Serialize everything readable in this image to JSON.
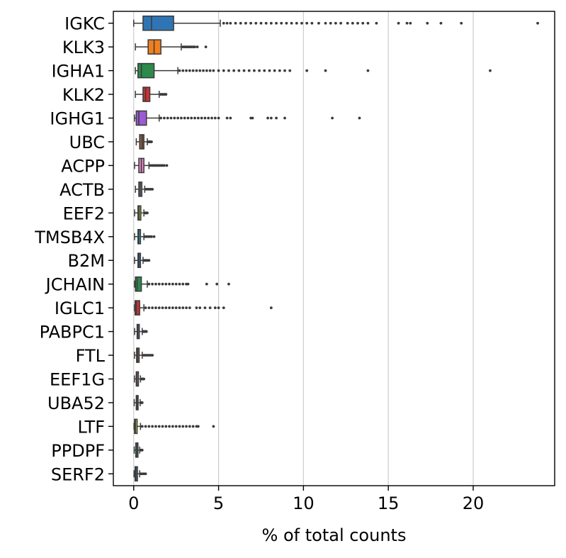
{
  "chart_data": {
    "type": "boxplot",
    "orientation": "horizontal",
    "title": "",
    "xlabel": "% of total counts",
    "ylabel": "",
    "xlim": [
      -1.2,
      24.8
    ],
    "xticks": [
      0,
      5,
      10,
      15,
      20
    ],
    "grid": {
      "x": true,
      "y": false
    },
    "categories": [
      "IGKC",
      "KLK3",
      "IGHA1",
      "KLK2",
      "IGHG1",
      "UBC",
      "ACPP",
      "ACTB",
      "EEF2",
      "TMSB4X",
      "B2M",
      "JCHAIN",
      "IGLC1",
      "PABPC1",
      "FTL",
      "EEF1G",
      "UBA52",
      "LTF",
      "PPDPF",
      "SERF2"
    ],
    "boxes": [
      {
        "name": "IGKC",
        "color": "#2f75b5",
        "whisker_low": 0.0,
        "q1": 0.55,
        "median": 1.05,
        "q3": 2.35,
        "whisker_high": 5.1,
        "fliers": [
          5.3,
          5.5,
          5.7,
          6.0,
          6.3,
          6.6,
          6.9,
          7.2,
          7.5,
          7.8,
          8.1,
          8.4,
          8.7,
          9.0,
          9.3,
          9.6,
          9.9,
          10.2,
          10.5,
          10.9,
          11.3,
          11.6,
          11.9,
          12.2,
          12.6,
          12.9,
          13.2,
          13.5,
          13.8,
          14.3,
          15.6,
          16.1,
          16.3,
          17.3,
          18.1,
          19.3,
          23.8
        ]
      },
      {
        "name": "KLK3",
        "color": "#f07f1f",
        "whisker_low": 0.1,
        "q1": 0.85,
        "median": 1.2,
        "q3": 1.6,
        "whisker_high": 2.8,
        "fliers": [
          2.9,
          3.0,
          3.1,
          3.2,
          3.3,
          3.4,
          3.5,
          3.6,
          3.75,
          4.25
        ]
      },
      {
        "name": "IGHA1",
        "color": "#2c8a4b",
        "whisker_low": 0.1,
        "q1": 0.25,
        "median": 0.45,
        "q3": 1.2,
        "whisker_high": 2.6,
        "fliers": [
          2.7,
          2.9,
          3.1,
          3.3,
          3.5,
          3.7,
          3.9,
          4.1,
          4.3,
          4.5,
          4.7,
          5.0,
          5.3,
          5.6,
          5.9,
          6.2,
          6.5,
          6.8,
          7.1,
          7.4,
          7.7,
          8.0,
          8.3,
          8.6,
          8.9,
          9.2,
          10.2,
          11.3,
          13.8,
          21.0
        ]
      },
      {
        "name": "KLK2",
        "color": "#c93133",
        "whisker_low": 0.1,
        "q1": 0.55,
        "median": 0.7,
        "q3": 0.95,
        "whisker_high": 1.5,
        "fliers": [
          1.6,
          1.7,
          1.8,
          1.9
        ]
      },
      {
        "name": "IGHG1",
        "color": "#9b5bd4",
        "whisker_low": 0.05,
        "q1": 0.15,
        "median": 0.3,
        "q3": 0.75,
        "whisker_high": 1.5,
        "fliers": [
          1.6,
          1.8,
          2.0,
          2.2,
          2.4,
          2.6,
          2.8,
          3.0,
          3.2,
          3.4,
          3.6,
          3.8,
          4.0,
          4.2,
          4.4,
          4.6,
          4.8,
          5.0,
          5.5,
          5.7,
          6.9,
          7.0,
          7.9,
          8.1,
          8.4,
          8.9,
          11.7,
          13.3
        ]
      },
      {
        "name": "UBC",
        "color": "#8b5a44",
        "whisker_low": 0.15,
        "q1": 0.35,
        "median": 0.5,
        "q3": 0.6,
        "whisker_high": 0.8,
        "fliers": [
          0.85,
          0.9,
          0.95,
          1.0,
          1.05
        ]
      },
      {
        "name": "ACPP",
        "color": "#e486c2",
        "whisker_low": 0.05,
        "q1": 0.3,
        "median": 0.45,
        "q3": 0.6,
        "whisker_high": 0.9,
        "fliers": [
          1.0,
          1.1,
          1.2,
          1.3,
          1.4,
          1.5,
          1.6,
          1.7,
          1.8,
          1.95
        ]
      },
      {
        "name": "ACTB",
        "color": "#808080",
        "whisker_low": 0.1,
        "q1": 0.3,
        "median": 0.38,
        "q3": 0.48,
        "whisker_high": 0.65,
        "fliers": [
          0.7,
          0.8,
          0.9,
          1.0,
          1.1
        ]
      },
      {
        "name": "EEF2",
        "color": "#b8bb2f",
        "whisker_low": 0.05,
        "q1": 0.25,
        "median": 0.32,
        "q3": 0.42,
        "whisker_high": 0.6,
        "fliers": [
          0.65,
          0.7,
          0.75,
          0.8
        ]
      },
      {
        "name": "TMSB4X",
        "color": "#1fb7cb",
        "whisker_low": 0.05,
        "q1": 0.25,
        "median": 0.3,
        "q3": 0.4,
        "whisker_high": 0.6,
        "fliers": [
          0.65,
          0.75,
          0.85,
          0.95,
          1.05,
          1.2
        ]
      },
      {
        "name": "B2M",
        "color": "#2f75b5",
        "whisker_low": 0.05,
        "q1": 0.25,
        "median": 0.3,
        "q3": 0.4,
        "whisker_high": 0.55,
        "fliers": [
          0.6,
          0.65,
          0.7,
          0.75,
          0.8,
          0.85,
          0.9
        ]
      },
      {
        "name": "JCHAIN",
        "color": "#2c8a4b",
        "whisker_low": 0.05,
        "q1": 0.1,
        "median": 0.2,
        "q3": 0.45,
        "whisker_high": 0.8,
        "fliers": [
          0.9,
          1.1,
          1.3,
          1.5,
          1.7,
          1.9,
          2.1,
          2.3,
          2.5,
          2.7,
          2.9,
          3.1,
          3.2,
          4.3,
          4.9,
          5.6
        ]
      },
      {
        "name": "IGLC1",
        "color": "#c93133",
        "whisker_low": 0.05,
        "q1": 0.08,
        "median": 0.15,
        "q3": 0.35,
        "whisker_high": 0.6,
        "fliers": [
          0.7,
          0.9,
          1.1,
          1.3,
          1.5,
          1.7,
          1.9,
          2.1,
          2.3,
          2.5,
          2.7,
          2.9,
          3.1,
          3.3,
          3.7,
          3.9,
          4.2,
          4.5,
          4.8,
          5.0,
          5.3,
          8.1
        ]
      },
      {
        "name": "PABPC1",
        "color": "#9b5bd4",
        "whisker_low": 0.05,
        "q1": 0.2,
        "median": 0.25,
        "q3": 0.33,
        "whisker_high": 0.5,
        "fliers": [
          0.55,
          0.6,
          0.65,
          0.7,
          0.75
        ]
      },
      {
        "name": "FTL",
        "color": "#8b5a44",
        "whisker_low": 0.05,
        "q1": 0.17,
        "median": 0.22,
        "q3": 0.32,
        "whisker_high": 0.5,
        "fliers": [
          0.6,
          0.7,
          0.8,
          0.9,
          1.0,
          1.1
        ]
      },
      {
        "name": "EEF1G",
        "color": "#e486c2",
        "whisker_low": 0.05,
        "q1": 0.15,
        "median": 0.2,
        "q3": 0.28,
        "whisker_high": 0.4,
        "fliers": [
          0.45,
          0.5,
          0.55,
          0.6
        ]
      },
      {
        "name": "UBA52",
        "color": "#808080",
        "whisker_low": 0.03,
        "q1": 0.15,
        "median": 0.2,
        "q3": 0.26,
        "whisker_high": 0.38,
        "fliers": [
          0.42,
          0.46,
          0.5
        ]
      },
      {
        "name": "LTF",
        "color": "#b8bb2f",
        "whisker_low": 0.02,
        "q1": 0.05,
        "median": 0.1,
        "q3": 0.2,
        "whisker_high": 0.4,
        "fliers": [
          0.5,
          0.7,
          0.9,
          1.1,
          1.3,
          1.5,
          1.7,
          1.9,
          2.1,
          2.3,
          2.5,
          2.7,
          2.9,
          3.1,
          3.3,
          3.5,
          3.7,
          3.8,
          4.7
        ]
      },
      {
        "name": "PPDPF",
        "color": "#1fb7cb",
        "whisker_low": 0.03,
        "q1": 0.12,
        "median": 0.18,
        "q3": 0.25,
        "whisker_high": 0.35,
        "fliers": [
          0.4,
          0.45,
          0.5
        ]
      },
      {
        "name": "SERF2",
        "color": "#2f75b5",
        "whisker_low": 0.02,
        "q1": 0.08,
        "median": 0.13,
        "q3": 0.22,
        "whisker_high": 0.35,
        "fliers": [
          0.4,
          0.5,
          0.6,
          0.7
        ]
      }
    ]
  }
}
